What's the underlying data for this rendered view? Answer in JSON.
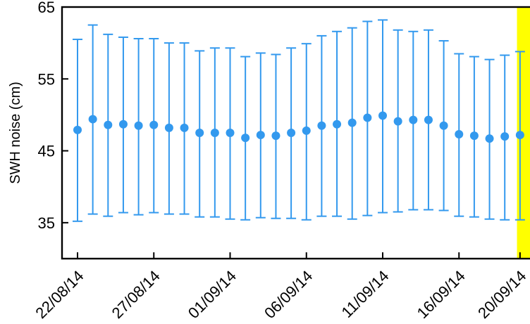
{
  "chart_data": {
    "type": "errorbar",
    "title": "",
    "xlabel": "",
    "ylabel": "SWH noise (cm)",
    "ylim": [
      30,
      65
    ],
    "yticks": [
      35,
      45,
      55,
      65
    ],
    "xticks": [
      {
        "day_index": 0,
        "label": "22/08/14"
      },
      {
        "day_index": 5,
        "label": "27/08/14"
      },
      {
        "day_index": 10,
        "label": "01/09/14"
      },
      {
        "day_index": 15,
        "label": "06/09/14"
      },
      {
        "day_index": 20,
        "label": "11/09/14"
      },
      {
        "day_index": 25,
        "label": "16/09/14"
      },
      {
        "day_index": 29,
        "label": "20/09/14"
      }
    ],
    "highlight": {
      "from_day_index": 28.8,
      "color": "#ffff00"
    },
    "series_color": "#3399ee",
    "x": [
      "22/08/14",
      "23/08/14",
      "24/08/14",
      "25/08/14",
      "26/08/14",
      "27/08/14",
      "28/08/14",
      "29/08/14",
      "30/08/14",
      "31/08/14",
      "01/09/14",
      "02/09/14",
      "03/09/14",
      "04/09/14",
      "05/09/14",
      "06/09/14",
      "07/09/14",
      "08/09/14",
      "09/09/14",
      "10/09/14",
      "11/09/14",
      "12/09/14",
      "13/09/14",
      "14/09/14",
      "15/09/14",
      "16/09/14",
      "17/09/14",
      "18/09/14",
      "19/09/14",
      "20/09/14"
    ],
    "mean": [
      47.9,
      49.4,
      48.6,
      48.7,
      48.5,
      48.6,
      48.2,
      48.2,
      47.5,
      47.5,
      47.5,
      46.8,
      47.2,
      47.1,
      47.5,
      47.8,
      48.5,
      48.7,
      48.9,
      49.6,
      49.9,
      49.1,
      49.3,
      49.3,
      48.5,
      47.3,
      47.1,
      46.7,
      47.0,
      47.2
    ],
    "upper": [
      60.5,
      62.5,
      61.2,
      60.8,
      60.6,
      60.6,
      60.0,
      60.0,
      58.9,
      59.3,
      59.3,
      58.1,
      58.6,
      58.4,
      59.3,
      59.9,
      61.0,
      61.6,
      62.1,
      63.0,
      63.2,
      61.8,
      61.6,
      61.8,
      60.3,
      58.5,
      58.1,
      57.7,
      58.3,
      58.8
    ],
    "lower": [
      35.2,
      36.2,
      35.9,
      36.4,
      36.1,
      36.4,
      36.2,
      36.2,
      35.8,
      35.8,
      35.5,
      35.4,
      35.7,
      35.6,
      35.6,
      35.4,
      35.9,
      35.9,
      35.5,
      36.0,
      36.4,
      36.5,
      36.8,
      36.8,
      36.7,
      35.9,
      35.8,
      35.5,
      35.4,
      35.4
    ]
  }
}
